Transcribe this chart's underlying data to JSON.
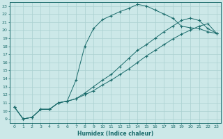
{
  "title": "",
  "xlabel": "Humidex (Indice chaleur)",
  "ylabel": "",
  "xlim": [
    -0.5,
    23.5
  ],
  "ylim": [
    8.5,
    23.5
  ],
  "xticks": [
    0,
    1,
    2,
    3,
    4,
    5,
    6,
    7,
    8,
    9,
    10,
    11,
    12,
    13,
    14,
    15,
    16,
    17,
    18,
    19,
    20,
    21,
    22,
    23
  ],
  "yticks": [
    9,
    10,
    11,
    12,
    13,
    14,
    15,
    16,
    17,
    18,
    19,
    20,
    21,
    22,
    23
  ],
  "bg_color": "#cce8e8",
  "line_color": "#1a6b6b",
  "grid_color": "#aad0d0",
  "line1_x": [
    0,
    1,
    2,
    3,
    4,
    5,
    6,
    7,
    8,
    9,
    10,
    11,
    12,
    13,
    14,
    15,
    16,
    17,
    18,
    19,
    20,
    21,
    22,
    23
  ],
  "line1_y": [
    10.5,
    9.0,
    9.2,
    10.2,
    10.2,
    11.0,
    11.2,
    13.8,
    18.0,
    20.2,
    21.3,
    21.8,
    22.3,
    22.7,
    23.2,
    23.0,
    22.5,
    22.0,
    21.5,
    20.5,
    20.3,
    20.2,
    19.8,
    19.6
  ],
  "line2_x": [
    0,
    1,
    2,
    3,
    4,
    5,
    6,
    7,
    8,
    9,
    10,
    11,
    12,
    13,
    14,
    15,
    16,
    17,
    18,
    19,
    20,
    21,
    22,
    23
  ],
  "line2_y": [
    10.5,
    9.0,
    9.2,
    10.2,
    10.2,
    11.0,
    11.2,
    11.5,
    12.0,
    12.5,
    13.2,
    13.8,
    14.5,
    15.2,
    16.0,
    16.8,
    17.5,
    18.2,
    18.9,
    19.5,
    20.0,
    20.5,
    20.8,
    19.6
  ],
  "line3_x": [
    0,
    1,
    2,
    3,
    4,
    5,
    6,
    7,
    8,
    9,
    10,
    11,
    12,
    13,
    14,
    15,
    16,
    17,
    18,
    19,
    20,
    21,
    22,
    23
  ],
  "line3_y": [
    10.5,
    9.0,
    9.2,
    10.2,
    10.2,
    11.0,
    11.2,
    11.5,
    12.2,
    13.0,
    13.8,
    14.5,
    15.5,
    16.5,
    17.5,
    18.2,
    19.0,
    19.8,
    20.5,
    21.2,
    21.5,
    21.2,
    20.2,
    19.6
  ]
}
